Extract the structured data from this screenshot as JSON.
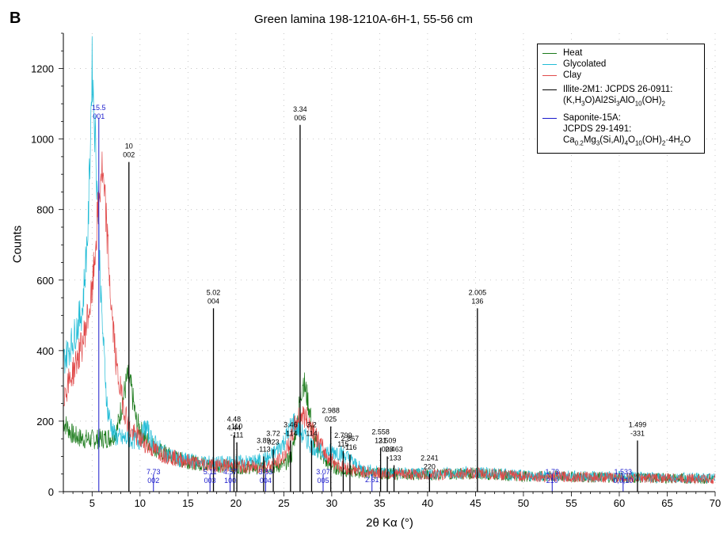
{
  "panel_label": "B",
  "chart_data": {
    "type": "line",
    "title": "Green lamina 198-1210A-6H-1, 55-56 cm",
    "xlabel": "2θ Kα (°)",
    "ylabel": "Counts",
    "xlim": [
      2,
      70
    ],
    "ylim": [
      0,
      1300
    ],
    "x_ticks": [
      5,
      10,
      15,
      20,
      25,
      30,
      35,
      40,
      45,
      50,
      55,
      60,
      65,
      70
    ],
    "y_ticks": [
      0,
      200,
      400,
      600,
      800,
      1000,
      1200
    ],
    "grid": true,
    "legend_position": "top-right",
    "series": [
      {
        "name": "Heat",
        "color": "#1a7a1a",
        "points": [
          [
            2,
            200
          ],
          [
            3,
            160
          ],
          [
            4,
            150
          ],
          [
            5,
            148
          ],
          [
            6,
            150
          ],
          [
            7,
            155
          ],
          [
            7.6,
            175
          ],
          [
            8.2,
            260
          ],
          [
            8.7,
            325
          ],
          [
            9.1,
            290
          ],
          [
            9.6,
            200
          ],
          [
            10.5,
            150
          ],
          [
            12,
            115
          ],
          [
            14,
            92
          ],
          [
            16,
            80
          ],
          [
            18,
            75
          ],
          [
            20,
            70
          ],
          [
            22,
            68
          ],
          [
            24,
            70
          ],
          [
            25,
            75
          ],
          [
            25.8,
            100
          ],
          [
            26.4,
            200
          ],
          [
            27,
            320
          ],
          [
            27.5,
            260
          ],
          [
            28.2,
            140
          ],
          [
            29.5,
            80
          ],
          [
            31,
            60
          ],
          [
            33,
            55
          ],
          [
            35,
            52
          ],
          [
            40,
            48
          ],
          [
            45,
            52
          ],
          [
            50,
            44
          ],
          [
            55,
            42
          ],
          [
            60,
            40
          ],
          [
            65,
            38
          ],
          [
            70,
            36
          ]
        ]
      },
      {
        "name": "Glycolated",
        "color": "#21bcd6",
        "points": [
          [
            2,
            370
          ],
          [
            3,
            430
          ],
          [
            4,
            520
          ],
          [
            4.6,
            760
          ],
          [
            5,
            1210
          ],
          [
            5.4,
            960
          ],
          [
            6,
            500
          ],
          [
            6.6,
            230
          ],
          [
            7.3,
            160
          ],
          [
            8,
            150
          ],
          [
            9,
            150
          ],
          [
            10,
            145
          ],
          [
            10.6,
            185
          ],
          [
            11.2,
            145
          ],
          [
            12.5,
            110
          ],
          [
            14,
            92
          ],
          [
            16,
            84
          ],
          [
            18,
            80
          ],
          [
            20,
            82
          ],
          [
            22,
            84
          ],
          [
            23.5,
            95
          ],
          [
            25,
            140
          ],
          [
            26,
            200
          ],
          [
            26.5,
            180
          ],
          [
            27,
            160
          ],
          [
            28,
            130
          ],
          [
            29,
            110
          ],
          [
            30.5,
            115
          ],
          [
            31.5,
            100
          ],
          [
            33,
            65
          ],
          [
            35,
            55
          ],
          [
            40,
            50
          ],
          [
            45,
            55
          ],
          [
            50,
            46
          ],
          [
            55,
            44
          ],
          [
            60,
            42
          ],
          [
            65,
            40
          ],
          [
            70,
            38
          ]
        ]
      },
      {
        "name": "Clay",
        "color": "#e04a4a",
        "points": [
          [
            2,
            270
          ],
          [
            3,
            340
          ],
          [
            4,
            420
          ],
          [
            5,
            560
          ],
          [
            5.5,
            750
          ],
          [
            6,
            920
          ],
          [
            6.5,
            760
          ],
          [
            7,
            520
          ],
          [
            7.6,
            340
          ],
          [
            8.3,
            240
          ],
          [
            9,
            170
          ],
          [
            10,
            150
          ],
          [
            11,
            125
          ],
          [
            12.5,
            105
          ],
          [
            14,
            92
          ],
          [
            16,
            80
          ],
          [
            18,
            75
          ],
          [
            20,
            72
          ],
          [
            22,
            70
          ],
          [
            24,
            75
          ],
          [
            25,
            100
          ],
          [
            25.8,
            150
          ],
          [
            26.3,
            200
          ],
          [
            26.8,
            220
          ],
          [
            27.3,
            210
          ],
          [
            28,
            180
          ],
          [
            28.5,
            150
          ],
          [
            29.5,
            100
          ],
          [
            31,
            70
          ],
          [
            33,
            58
          ],
          [
            35,
            52
          ],
          [
            40,
            48
          ],
          [
            45,
            52
          ],
          [
            50,
            44
          ],
          [
            55,
            42
          ],
          [
            60,
            40
          ],
          [
            65,
            38
          ],
          [
            70,
            36
          ]
        ]
      }
    ],
    "reference_legend": [
      {
        "name_lines": [
          "Illite-2M1: JCPDS 26-0911:"
        ],
        "formula_parts": [
          [
            "(K,H",
            "n"
          ],
          [
            "3",
            "sub"
          ],
          [
            "O)Al2Si",
            "n"
          ],
          [
            "3",
            "sub"
          ],
          [
            "AlO",
            "n"
          ],
          [
            "10",
            "sub"
          ],
          [
            "(OH)",
            "n"
          ],
          [
            "2",
            "sub"
          ]
        ],
        "color": "#000000"
      },
      {
        "name_lines": [
          "Saponite-15A:",
          "JCPDS 29-1491:"
        ],
        "formula_parts": [
          [
            "Ca",
            "n"
          ],
          [
            "0.2",
            "sub"
          ],
          [
            "Mg",
            "n"
          ],
          [
            "3",
            "sub"
          ],
          [
            "(Si,Al)",
            "n"
          ],
          [
            "4",
            "sub"
          ],
          [
            "O",
            "n"
          ],
          [
            "10",
            "sub"
          ],
          [
            "(OH)",
            "n"
          ],
          [
            "2",
            "sub"
          ],
          [
            "·4H",
            "n"
          ],
          [
            "2",
            "sub"
          ],
          [
            "O",
            "n"
          ]
        ],
        "color": "#1a1acc"
      }
    ],
    "illite_peaks": [
      {
        "x": 8.84,
        "height": 935,
        "d": "10",
        "hkl": "002"
      },
      {
        "x": 17.66,
        "height": 520,
        "d": "5.02",
        "hkl": "004"
      },
      {
        "x": 19.8,
        "height": 160,
        "d": "4.48",
        "hkl": "4.44"
      },
      {
        "x": 20.1,
        "height": 140,
        "d": "110",
        "hkl": "-111"
      },
      {
        "x": 22.9,
        "height": 100,
        "d": "3.89",
        "hkl": "-113"
      },
      {
        "x": 23.9,
        "height": 120,
        "d": "3.72",
        "hkl": "023"
      },
      {
        "x": 25.7,
        "height": 145,
        "d": "3.46",
        "hkl": "-114"
      },
      {
        "x": 26.7,
        "height": 1040,
        "d": "3.34",
        "hkl": "006"
      },
      {
        "x": 27.9,
        "height": 145,
        "d": "3.2",
        "hkl": "114"
      },
      {
        "x": 29.9,
        "height": 185,
        "d": "2.988",
        "hkl": "025"
      },
      {
        "x": 31.2,
        "height": 115,
        "d": "2.799",
        "hkl": "115"
      },
      {
        "x": 31.9,
        "height": 105,
        "d": "2.867",
        "hkl": "-116"
      },
      {
        "x": 35.1,
        "height": 125,
        "d": "2.558",
        "hkl": "131"
      },
      {
        "x": 35.8,
        "height": 100,
        "d": "2.509",
        "hkl": "008"
      },
      {
        "x": 36.5,
        "height": 75,
        "d": "2.463",
        "hkl": "-133"
      },
      {
        "x": 40.2,
        "height": 50,
        "d": "2.241",
        "hkl": "220"
      },
      {
        "x": 45.2,
        "height": 520,
        "d": "2.005",
        "hkl": "136"
      },
      {
        "x": 61.9,
        "height": 145,
        "d": "1.499",
        "hkl": "-331"
      }
    ],
    "saponite_peaks": [
      {
        "x": 5.7,
        "height": 1060,
        "d": "15.5",
        "hkl": "001",
        "label": "top"
      },
      {
        "x": 11.4,
        "height": 0,
        "d": "7.73",
        "hkl": "002",
        "label": "bottom"
      },
      {
        "x": 17.3,
        "height": 0,
        "d": "5.11",
        "hkl": "003",
        "label": "bottom"
      },
      {
        "x": 19.4,
        "height": 0,
        "d": "4.57",
        "hkl": "100",
        "label": "bottom"
      },
      {
        "x": 23.1,
        "height": 0,
        "d": "3.83",
        "hkl": "004",
        "label": "bottom"
      },
      {
        "x": 29.1,
        "height": 0,
        "d": "3.07",
        "hkl": "005",
        "label": "bottom"
      },
      {
        "x": 34.2,
        "height": 0,
        "d": "2.61",
        "hkl": "",
        "label": "bottom"
      },
      {
        "x": 53.0,
        "height": 0,
        "d": "1.73",
        "hkl": "210",
        "label": "bottom"
      },
      {
        "x": 60.4,
        "height": 0,
        "d": "1.533",
        "hkl": "0,0,10",
        "label": "bottom"
      }
    ]
  }
}
